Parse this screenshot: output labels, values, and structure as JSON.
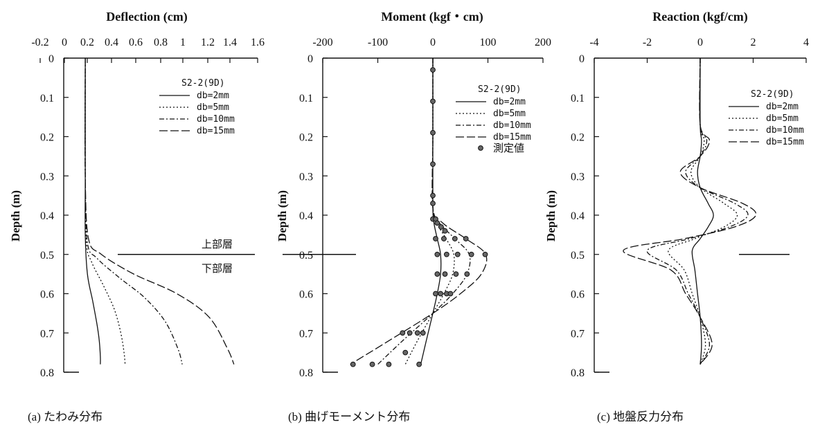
{
  "chart_data": [
    {
      "type": "line",
      "title": "Deflection (cm)",
      "xlabel": "Deflection (cm)",
      "ylabel": "Depth (m)",
      "caption": "(a) たわみ分布",
      "xlim": [
        -0.2,
        1.6
      ],
      "ylim": [
        0,
        0.8
      ],
      "y_inverted": true,
      "x_axis_position": "top",
      "x_ticks": [
        "-0.2",
        "0",
        "0.2",
        "0.4",
        "0.6",
        "0.8",
        "1",
        "1.2",
        "1.4",
        "1.6"
      ],
      "y_ticks": [
        "0",
        "0.1",
        "0.2",
        "0.3",
        "0.4",
        "0.5",
        "0.6",
        "0.7",
        "0.8"
      ],
      "legend": {
        "title": "S2-2(9D)",
        "position": "top-right"
      },
      "layer_boundary": {
        "depth": 0.5,
        "upper_label": "上部層",
        "lower_label": "下部層"
      },
      "series": [
        {
          "name": "db=2mm",
          "style": "solid",
          "x": [
            0.0,
            0.0,
            0.0,
            0.02,
            0.07,
            0.11,
            0.13,
            0.14,
            0.14
          ],
          "y": [
            0,
            0.3,
            0.45,
            0.55,
            0.62,
            0.68,
            0.72,
            0.76,
            0.78
          ]
        },
        {
          "name": "db=5mm",
          "style": "dotted",
          "x": [
            0.0,
            0.0,
            0.01,
            0.06,
            0.17,
            0.27,
            0.33,
            0.36,
            0.37
          ],
          "y": [
            0,
            0.3,
            0.47,
            0.52,
            0.58,
            0.64,
            0.7,
            0.75,
            0.78
          ]
        },
        {
          "name": "db=10mm",
          "style": "dashdot",
          "x": [
            0.0,
            0.0,
            0.02,
            0.11,
            0.32,
            0.55,
            0.74,
            0.86,
            0.9
          ],
          "y": [
            0,
            0.3,
            0.47,
            0.51,
            0.56,
            0.61,
            0.67,
            0.74,
            0.78
          ]
        },
        {
          "name": "db=15mm",
          "style": "longdash",
          "x": [
            0.0,
            0.0,
            0.03,
            0.15,
            0.45,
            0.85,
            1.15,
            1.32,
            1.38
          ],
          "y": [
            0,
            0.3,
            0.46,
            0.5,
            0.55,
            0.6,
            0.66,
            0.74,
            0.78
          ]
        }
      ]
    },
    {
      "type": "line",
      "title": "Moment (kgf・cm)",
      "xlabel": "Moment (kgf・cm)",
      "ylabel": "Depth (m)",
      "caption": "(b) 曲げモーメント分布",
      "xlim": [
        -200,
        200
      ],
      "ylim": [
        0,
        0.8
      ],
      "y_inverted": true,
      "x_axis_position": "top",
      "x_ticks": [
        "-200",
        "-100",
        "0",
        "100",
        "200"
      ],
      "y_ticks": [
        "0",
        "0.1",
        "0.2",
        "0.3",
        "0.4",
        "0.5",
        "0.6",
        "0.7",
        "0.8"
      ],
      "legend": {
        "title": "S2-2(9D)",
        "position": "top-right",
        "measured_label": "測定値"
      },
      "series": [
        {
          "name": "db=2mm",
          "style": "solid",
          "x": [
            0,
            0,
            0,
            2,
            8,
            14,
            14,
            8,
            0,
            -12,
            -22
          ],
          "y": [
            0,
            0.2,
            0.38,
            0.42,
            0.46,
            0.5,
            0.55,
            0.6,
            0.65,
            0.72,
            0.78
          ]
        },
        {
          "name": "db=5mm",
          "style": "dotted",
          "x": [
            0,
            0,
            0,
            7,
            24,
            38,
            36,
            20,
            0,
            -28,
            -50
          ],
          "y": [
            0,
            0.2,
            0.38,
            0.42,
            0.46,
            0.5,
            0.55,
            0.6,
            0.65,
            0.72,
            0.78
          ]
        },
        {
          "name": "db=10mm",
          "style": "dashdot",
          "x": [
            0,
            0,
            0,
            12,
            40,
            66,
            62,
            36,
            0,
            -55,
            -100
          ],
          "y": [
            0,
            0.2,
            0.38,
            0.42,
            0.46,
            0.5,
            0.55,
            0.6,
            0.65,
            0.72,
            0.78
          ]
        },
        {
          "name": "db=15mm",
          "style": "longdash",
          "x": [
            0,
            0,
            0,
            18,
            60,
            96,
            88,
            50,
            0,
            -80,
            -150
          ],
          "y": [
            0,
            0.2,
            0.38,
            0.42,
            0.46,
            0.5,
            0.55,
            0.6,
            0.65,
            0.72,
            0.78
          ]
        }
      ],
      "measured": {
        "name": "測定値",
        "x": [
          0,
          0,
          0,
          0,
          0,
          0,
          0,
          5,
          8,
          15,
          22,
          5,
          20,
          40,
          60,
          8,
          25,
          45,
          70,
          95,
          8,
          22,
          42,
          62,
          5,
          14,
          25,
          32,
          -18,
          -28,
          -42,
          -55,
          -25,
          -50,
          -80,
          -110,
          -145
        ],
        "y": [
          0.03,
          0.11,
          0.19,
          0.27,
          0.35,
          0.37,
          0.41,
          0.41,
          0.42,
          0.43,
          0.44,
          0.46,
          0.46,
          0.46,
          0.46,
          0.5,
          0.5,
          0.5,
          0.5,
          0.5,
          0.55,
          0.55,
          0.55,
          0.55,
          0.6,
          0.6,
          0.6,
          0.6,
          0.7,
          0.7,
          0.7,
          0.7,
          0.78,
          0.75,
          0.78,
          0.78,
          0.78
        ]
      }
    },
    {
      "type": "line",
      "title": "Reaction (kgf/cm)",
      "xlabel": "Reaction (kgf/cm)",
      "ylabel": "Depth (m)",
      "caption": "(c) 地盤反力分布",
      "xlim": [
        -4,
        4
      ],
      "ylim": [
        0,
        0.8
      ],
      "y_inverted": true,
      "x_axis_position": "top",
      "x_ticks": [
        "-4",
        "-2",
        "0",
        "2",
        "4"
      ],
      "y_ticks": [
        "0",
        "0.1",
        "0.2",
        "0.3",
        "0.4",
        "0.5",
        "0.6",
        "0.7",
        "0.8"
      ],
      "legend": {
        "title": "S2-2(9D)",
        "position": "top-right"
      },
      "series": [
        {
          "name": "db=2mm",
          "style": "solid",
          "x": [
            0,
            0,
            0.05,
            0,
            -0.1,
            0,
            0.3,
            0.5,
            0.3,
            0,
            -0.3,
            -0.2,
            -0.1,
            0,
            0.05,
            0
          ],
          "y": [
            0,
            0.17,
            0.21,
            0.25,
            0.29,
            0.33,
            0.37,
            0.4,
            0.43,
            0.46,
            0.49,
            0.54,
            0.6,
            0.66,
            0.73,
            0.78
          ]
        },
        {
          "name": "db=5mm",
          "style": "dotted",
          "x": [
            0,
            0,
            0.15,
            0,
            -0.35,
            0,
            0.9,
            1.4,
            0.9,
            -0.2,
            -1.2,
            -0.6,
            -0.3,
            0,
            0.2,
            0
          ],
          "y": [
            0,
            0.17,
            0.21,
            0.25,
            0.29,
            0.33,
            0.37,
            0.4,
            0.43,
            0.46,
            0.49,
            0.54,
            0.6,
            0.66,
            0.73,
            0.78
          ]
        },
        {
          "name": "db=10mm",
          "style": "dashdot",
          "x": [
            0,
            0,
            0.25,
            0,
            -0.55,
            0,
            1.3,
            1.8,
            1.1,
            -0.4,
            -2.0,
            -0.9,
            -0.45,
            0,
            0.35,
            0
          ],
          "y": [
            0,
            0.17,
            0.21,
            0.25,
            0.29,
            0.33,
            0.37,
            0.4,
            0.43,
            0.46,
            0.49,
            0.54,
            0.6,
            0.66,
            0.73,
            0.78
          ]
        },
        {
          "name": "db=15mm",
          "style": "longdash",
          "x": [
            0,
            0,
            0.35,
            0,
            -0.75,
            0,
            1.6,
            2.1,
            1.3,
            -0.6,
            -2.9,
            -1.1,
            -0.55,
            0,
            0.45,
            0
          ],
          "y": [
            0,
            0.17,
            0.21,
            0.25,
            0.29,
            0.33,
            0.37,
            0.4,
            0.43,
            0.46,
            0.49,
            0.54,
            0.6,
            0.66,
            0.73,
            0.78
          ]
        }
      ],
      "layer_boundary": {
        "depth": 0.5
      }
    }
  ]
}
